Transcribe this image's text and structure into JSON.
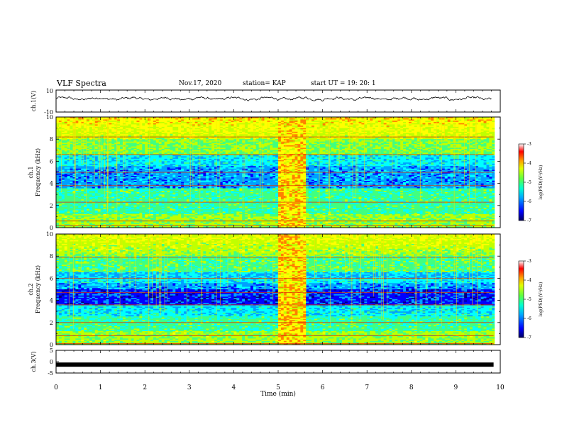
{
  "header": {
    "title": "VLF Spectra",
    "date": "Nov.17, 2020",
    "station": "station= KAP",
    "start": "start  UT =   19: 20: 1"
  },
  "chart_data": [
    {
      "type": "line",
      "name": "ch1-waveform",
      "ylabel": "ch.1(V)",
      "ylim": [
        -10,
        10
      ],
      "yticks": [
        "10",
        "-10"
      ],
      "xlim": [
        0,
        10
      ],
      "grid": false,
      "note_color": "#000000"
    },
    {
      "type": "heatmap",
      "name": "ch1-spectrogram",
      "ylabel_lines": [
        "ch.1",
        "Frequency (kHz)"
      ],
      "ylim": [
        0,
        10
      ],
      "yticks": [
        "0",
        "2",
        "4",
        "6",
        "8",
        "10"
      ],
      "xlim": [
        0,
        10
      ],
      "colorbar": {
        "label": "log(PSD)(V²/Hz)",
        "range": [
          -7,
          -3
        ],
        "ticks": [
          "-3",
          "-4",
          "-5",
          "-6",
          "-7"
        ]
      }
    },
    {
      "type": "heatmap",
      "name": "ch2-spectrogram",
      "ylabel_lines": [
        "ch.2",
        "Frequency (kHz)"
      ],
      "ylim": [
        0,
        10
      ],
      "yticks": [
        "0",
        "2",
        "4",
        "6",
        "8",
        "10"
      ],
      "xlim": [
        0,
        10
      ],
      "colorbar": {
        "label": "log(PSD)(V²/Hz)",
        "range": [
          -7,
          -3
        ],
        "ticks": [
          "-3",
          "-4",
          "-5",
          "-6",
          "-7"
        ]
      }
    },
    {
      "type": "line",
      "name": "ch3-signal",
      "ylabel": "ch.3(V)",
      "ylim": [
        -5,
        5
      ],
      "yticks": [
        "5",
        "0",
        "-5"
      ],
      "xlim": [
        0,
        10
      ],
      "level": -1.3
    }
  ],
  "xaxis": {
    "label": "Time (min)",
    "ticks": [
      "0",
      "1",
      "2",
      "3",
      "4",
      "5",
      "6",
      "7",
      "8",
      "9",
      "10"
    ]
  },
  "colormap": [
    "#000080",
    "#0000ff",
    "#00a0ff",
    "#00ffff",
    "#40ff80",
    "#c0ff00",
    "#ffff00",
    "#ff8000",
    "#ff0000",
    "#ffffff"
  ]
}
